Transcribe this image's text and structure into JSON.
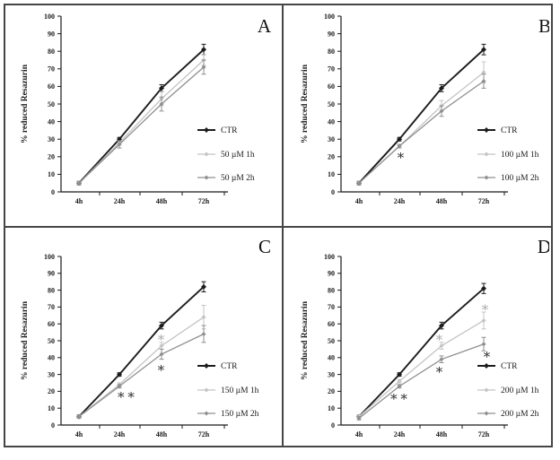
{
  "figure": {
    "background": "#ffffff",
    "border_color": "#454545",
    "axis_color": "#1a1a1a",
    "ylabel": "% reduced Resazurin",
    "categories": [
      "4h",
      "24h",
      "48h",
      "72h"
    ],
    "ymin": 0,
    "ymax": 100,
    "ytick_step": 10,
    "asterisk_dark": "#2e2e2e",
    "asterisk_light": "#ababab"
  },
  "chart_data": [
    {
      "panel": "A",
      "type": "line",
      "title": "",
      "xlabel": "",
      "ylabel": "% reduced Resazurin",
      "ylim": [
        0,
        100
      ],
      "categories": [
        "4h",
        "24h",
        "48h",
        "72h"
      ],
      "legend_position": "right-lower",
      "grid": false,
      "series": [
        {
          "name": "CTR",
          "color": "#1c1c1c",
          "values": [
            5,
            30,
            59,
            81
          ],
          "errors": [
            1,
            1,
            2,
            3
          ]
        },
        {
          "name": "50 µM 1h",
          "color": "#c4c4c4",
          "values": [
            5,
            28,
            53,
            75
          ],
          "errors": [
            1,
            1,
            4,
            3
          ]
        },
        {
          "name": "50 µM 2h",
          "color": "#8f8f8f",
          "values": [
            5,
            27,
            50,
            71
          ],
          "errors": [
            1,
            2,
            4,
            4
          ]
        }
      ],
      "annotations": []
    },
    {
      "panel": "B",
      "type": "line",
      "title": "",
      "xlabel": "",
      "ylabel": "% reduced Resazurin",
      "ylim": [
        0,
        100
      ],
      "categories": [
        "4h",
        "24h",
        "48h",
        "72h"
      ],
      "legend_position": "right-lower",
      "grid": false,
      "series": [
        {
          "name": "CTR",
          "color": "#1c1c1c",
          "values": [
            5,
            30,
            59,
            81
          ],
          "errors": [
            1,
            1,
            2,
            3
          ]
        },
        {
          "name": "100 µM 1h",
          "color": "#c4c4c4",
          "values": [
            5,
            26,
            49,
            68
          ],
          "errors": [
            1,
            1,
            3,
            6
          ]
        },
        {
          "name": "100 µM 2h",
          "color": "#8f8f8f",
          "values": [
            5,
            26,
            46,
            63
          ],
          "errors": [
            1,
            1,
            3,
            4
          ]
        }
      ],
      "annotations": [
        {
          "category_index": 1,
          "value": 21,
          "text": "*",
          "color": "#2e2e2e",
          "dx": 2
        }
      ]
    },
    {
      "panel": "C",
      "type": "line",
      "title": "",
      "xlabel": "",
      "ylabel": "% reduced Resazurin",
      "ylim": [
        0,
        100
      ],
      "categories": [
        "4h",
        "24h",
        "48h",
        "72h"
      ],
      "legend_position": "right-lower",
      "grid": false,
      "series": [
        {
          "name": "CTR",
          "color": "#1c1c1c",
          "values": [
            5,
            30,
            59,
            82
          ],
          "errors": [
            1,
            1,
            2,
            3
          ]
        },
        {
          "name": "150 µM 1h",
          "color": "#c4c4c4",
          "values": [
            5,
            24,
            47,
            64
          ],
          "errors": [
            1,
            1,
            2,
            7
          ]
        },
        {
          "name": "150 µM 2h",
          "color": "#8f8f8f",
          "values": [
            5,
            23,
            42,
            54
          ],
          "errors": [
            1,
            1,
            3,
            5
          ]
        }
      ],
      "annotations": [
        {
          "category_index": 1,
          "value": 18,
          "text": "**",
          "color": "#2e2e2e",
          "dx": 8
        },
        {
          "category_index": 2,
          "value": 52,
          "text": "*",
          "color": "#ababab",
          "dx": 0
        },
        {
          "category_index": 2,
          "value": 34,
          "text": "*",
          "color": "#2e2e2e",
          "dx": 0
        }
      ]
    },
    {
      "panel": "D",
      "type": "line",
      "title": "",
      "xlabel": "",
      "ylabel": "% reduced Resazurin",
      "ylim": [
        0,
        100
      ],
      "categories": [
        "4h",
        "24h",
        "48h",
        "72h"
      ],
      "legend_position": "right-lower",
      "grid": false,
      "series": [
        {
          "name": "CTR",
          "color": "#1c1c1c",
          "values": [
            5,
            30,
            59,
            81
          ],
          "errors": [
            1,
            1,
            2,
            3
          ]
        },
        {
          "name": "200 µM 1h",
          "color": "#c4c4c4",
          "values": [
            5,
            26,
            47,
            62
          ],
          "errors": [
            1,
            1,
            2,
            5
          ]
        },
        {
          "name": "200 µM 2h",
          "color": "#8f8f8f",
          "values": [
            4,
            23,
            39,
            48
          ],
          "errors": [
            1,
            1,
            2,
            4
          ]
        }
      ],
      "annotations": [
        {
          "category_index": 1,
          "value": 17,
          "text": "**",
          "color": "#2e2e2e",
          "dx": 0
        },
        {
          "category_index": 2,
          "value": 52,
          "text": "*",
          "color": "#ababab",
          "dx": -2
        },
        {
          "category_index": 2,
          "value": 33,
          "text": "*",
          "color": "#2e2e2e",
          "dx": -2
        },
        {
          "category_index": 3,
          "value": 70,
          "text": "*",
          "color": "#ababab",
          "dx": 2
        },
        {
          "category_index": 3,
          "value": 42,
          "text": "*",
          "color": "#2e2e2e",
          "dx": 4
        }
      ]
    }
  ]
}
